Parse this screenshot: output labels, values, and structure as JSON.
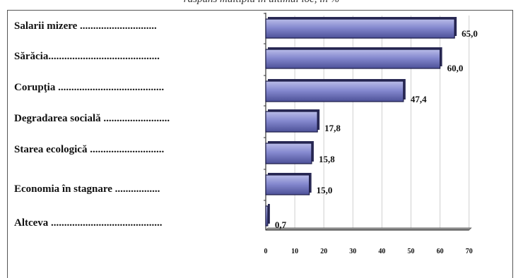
{
  "caption": "răspuns multiplu în ultimul loc, în %",
  "chart_data": {
    "type": "bar",
    "orientation": "horizontal",
    "title": "",
    "xlabel": "",
    "ylabel": "",
    "categories": [
      "Salarii mizere .............................",
      "Sărăcia..........................................",
      "Corupţia ........................................",
      "Degradarea socială .........................",
      "Starea ecologică ............................",
      "Economia în stagnare .................",
      "Altceva .........................................."
    ],
    "values": [
      65.0,
      60.0,
      47.4,
      17.8,
      15.8,
      15.0,
      0.7
    ],
    "value_labels": [
      "65,0",
      "60,0",
      "47,4",
      "17,8",
      "15,8",
      "15,0",
      "0,7"
    ],
    "xlim": [
      0,
      70
    ],
    "ticks": [
      0,
      10,
      20,
      30,
      40,
      50,
      60,
      70
    ],
    "grid": true,
    "bar_color": "#7b7fc4",
    "bar_edge_color": "#1b1b45",
    "grid_color": "#cfcfcf"
  }
}
